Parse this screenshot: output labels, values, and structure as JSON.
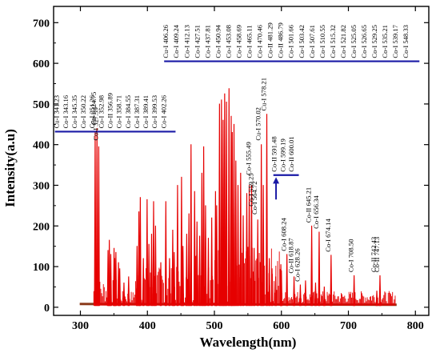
{
  "chart_data": {
    "type": "line",
    "xlabel": "Wavelength(nm)",
    "ylabel": "Intensity(a.u)",
    "xlim": [
      260,
      820
    ],
    "ylim": [
      -20,
      740
    ],
    "xticks": [
      300,
      400,
      500,
      600,
      700,
      800
    ],
    "yticks": [
      0,
      100,
      200,
      300,
      400,
      500,
      600,
      700
    ],
    "grid": false,
    "line_color": "#e60000",
    "baseline_color": "#8a3a1a",
    "bracket_color": "#1a1aa6",
    "peaks": [
      {
        "x": 322,
        "y": 430
      },
      {
        "x": 324.75,
        "y": 440
      },
      {
        "x": 327.39,
        "y": 395
      },
      {
        "x": 341.23,
        "y": 140
      },
      {
        "x": 343.16,
        "y": 165
      },
      {
        "x": 345.35,
        "y": 130
      },
      {
        "x": 350.22,
        "y": 145
      },
      {
        "x": 351.26,
        "y": 120
      },
      {
        "x": 352.98,
        "y": 135
      },
      {
        "x": 356.89,
        "y": 110
      },
      {
        "x": 358.71,
        "y": 95
      },
      {
        "x": 365,
        "y": 60
      },
      {
        "x": 372,
        "y": 75
      },
      {
        "x": 384.55,
        "y": 150
      },
      {
        "x": 387.31,
        "y": 235
      },
      {
        "x": 389.41,
        "y": 270
      },
      {
        "x": 394,
        "y": 120
      },
      {
        "x": 399.53,
        "y": 265
      },
      {
        "x": 402.26,
        "y": 155
      },
      {
        "x": 406.26,
        "y": 180
      },
      {
        "x": 409.24,
        "y": 260
      },
      {
        "x": 412.13,
        "y": 200
      },
      {
        "x": 420,
        "y": 110
      },
      {
        "x": 427.51,
        "y": 260
      },
      {
        "x": 433,
        "y": 120
      },
      {
        "x": 437.81,
        "y": 190
      },
      {
        "x": 440,
        "y": 135
      },
      {
        "x": 445,
        "y": 300
      },
      {
        "x": 450.94,
        "y": 320
      },
      {
        "x": 453.08,
        "y": 150
      },
      {
        "x": 458.69,
        "y": 180
      },
      {
        "x": 462,
        "y": 230
      },
      {
        "x": 465.11,
        "y": 400
      },
      {
        "x": 470.46,
        "y": 285
      },
      {
        "x": 474,
        "y": 210
      },
      {
        "x": 478,
        "y": 175
      },
      {
        "x": 481.29,
        "y": 330
      },
      {
        "x": 484,
        "y": 395
      },
      {
        "x": 486.79,
        "y": 250
      },
      {
        "x": 491,
        "y": 170
      },
      {
        "x": 496,
        "y": 220
      },
      {
        "x": 501.66,
        "y": 285
      },
      {
        "x": 503.42,
        "y": 250
      },
      {
        "x": 507.61,
        "y": 500
      },
      {
        "x": 510.55,
        "y": 510
      },
      {
        "x": 513,
        "y": 460
      },
      {
        "x": 515.32,
        "y": 525
      },
      {
        "x": 518,
        "y": 505
      },
      {
        "x": 521.82,
        "y": 538
      },
      {
        "x": 525.05,
        "y": 470
      },
      {
        "x": 526.65,
        "y": 430
      },
      {
        "x": 529.25,
        "y": 450
      },
      {
        "x": 532,
        "y": 360
      },
      {
        "x": 535.21,
        "y": 300
      },
      {
        "x": 539.17,
        "y": 330
      },
      {
        "x": 543,
        "y": 225
      },
      {
        "x": 548.33,
        "y": 280
      },
      {
        "x": 552,
        "y": 300
      },
      {
        "x": 555.49,
        "y": 300
      },
      {
        "x": 559.25,
        "y": 145
      },
      {
        "x": 564.72,
        "y": 215
      },
      {
        "x": 570.02,
        "y": 400
      },
      {
        "x": 573,
        "y": 300
      },
      {
        "x": 578.21,
        "y": 475
      },
      {
        "x": 582,
        "y": 120
      },
      {
        "x": 586,
        "y": 95
      },
      {
        "x": 591.48,
        "y": 75
      },
      {
        "x": 599.19,
        "y": 105
      },
      {
        "x": 600.01,
        "y": 90
      },
      {
        "x": 608.24,
        "y": 130
      },
      {
        "x": 618.87,
        "y": 75
      },
      {
        "x": 628.26,
        "y": 55
      },
      {
        "x": 636,
        "y": 65
      },
      {
        "x": 645.21,
        "y": 200
      },
      {
        "x": 651,
        "y": 60
      },
      {
        "x": 656.34,
        "y": 185
      },
      {
        "x": 664,
        "y": 50
      },
      {
        "x": 674.14,
        "y": 128
      },
      {
        "x": 708.5,
        "y": 78
      },
      {
        "x": 742.43,
        "y": 40
      },
      {
        "x": 747.13,
        "y": 78
      }
    ],
    "annotations": {
      "group_left": {
        "labels": [
          "Cu-I 341.23",
          "Co-I 343.16",
          "Co-I 345.35",
          "Co-I 350.22",
          "Co-I 351.26",
          "Co-I 352.98",
          "Co-II 356.89",
          "Co-I 358.71",
          "Co-I 384.55",
          "Co-I 387.31",
          "Co-I 389.41",
          "Co-I 399.53",
          "Co-I 402.26"
        ],
        "bracket_from": 262,
        "bracket_to": 442,
        "bracket_y": 432
      },
      "group_top": {
        "labels": [
          "Cu-I 406.26",
          "Co-I 409.24",
          "Co-I 412.13",
          "Co-I 427.51",
          "Co-I 437.81",
          "Co-I 450.94",
          "Co-I 453.08",
          "Co-I 458.69",
          "Co-I 465.11",
          "Co-I 470.46",
          "Co-II 481.29",
          "Co-II 486.79",
          "Co-I 501.66",
          "Co-I 503.42",
          "Co-I 507.61",
          "Co-I 510.55",
          "Co-I 515.32",
          "Co-I 521.82",
          "Co-I 525.05",
          "Co-I 526.65",
          "Co-I 529.25",
          "Co-I 535.21",
          "Co-I 539.17",
          "Co-I 548.33"
        ],
        "bracket_from": 425,
        "bracket_to": 806,
        "bracket_y": 605
      },
      "group_mid": {
        "labels": [
          "Co-II 591.48",
          "Co-I 599.19",
          "Co-II 600.01"
        ],
        "bracket_from": 588,
        "bracket_to": 626,
        "bracket_y": 325,
        "arrow_x": 592,
        "arrow_from": 265,
        "arrow_to": 320
      },
      "single": [
        {
          "text": "Cu-I 324.75",
          "x": 324.75,
          "y": 448
        },
        {
          "text": "Co-I 327.39",
          "x": 327.39,
          "y": 410
        },
        {
          "text": "Co-I 555.49",
          "x": 555.49,
          "y": 325
        },
        {
          "text": "Co-I 559.25",
          "x": 559.25,
          "y": 248
        },
        {
          "text": "Co-I 564.72",
          "x": 564.72,
          "y": 228
        },
        {
          "text": "Cu-I 570.02",
          "x": 570.02,
          "y": 410
        },
        {
          "text": "Cu-I 578.21",
          "x": 578.21,
          "y": 483
        },
        {
          "text": "Co-I 608.24",
          "x": 608.24,
          "y": 138
        },
        {
          "text": "Co-II 618.87",
          "x": 618.87,
          "y": 83
        },
        {
          "text": "Co-I 628.26",
          "x": 628.26,
          "y": 63
        },
        {
          "text": "Co-II 645.21",
          "x": 645.21,
          "y": 208
        },
        {
          "text": "Co-I 656.34",
          "x": 656.34,
          "y": 193
        },
        {
          "text": "Co-I 674.14",
          "x": 674.14,
          "y": 136
        },
        {
          "text": "Co-I 708.50",
          "x": 708.5,
          "y": 86
        },
        {
          "text": "Co-II 742.43",
          "x": 742.43,
          "y": 86
        },
        {
          "text": "Co-II 747.13",
          "x": 747.13,
          "y": 86
        }
      ]
    }
  }
}
